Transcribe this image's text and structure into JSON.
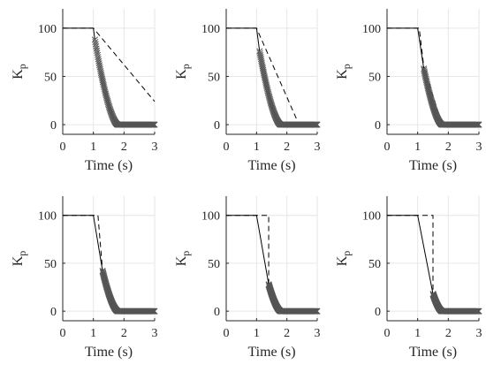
{
  "figure": {
    "background": "#ffffff",
    "grid_color": "#e6e6e6",
    "axis_color": "#262626",
    "line_color": "#000000",
    "marker_color": "#555555"
  },
  "chart_data": [
    {
      "type": "line",
      "xlabel": "Time (s)",
      "ylabel": "K",
      "ylabel_sub": "p",
      "xlim": [
        0,
        3
      ],
      "ylim": [
        -10,
        120
      ],
      "xticks": [
        0,
        1,
        2,
        3
      ],
      "yticks": [
        0,
        50,
        100
      ],
      "grid": true,
      "series": [
        {
          "style": "solid",
          "x": [
            0,
            1.0,
            1.05
          ],
          "y": [
            100,
            100,
            88
          ]
        },
        {
          "style": "dashed",
          "x": [
            0,
            1.0,
            3.0
          ],
          "y": [
            100,
            100,
            24
          ]
        },
        {
          "style": "markers",
          "x_start": 1.05,
          "y_start": 88,
          "x_zero": 1.8,
          "x_end": 3.0
        }
      ]
    },
    {
      "type": "line",
      "xlabel": "Time (s)",
      "ylabel": "K",
      "ylabel_sub": "p",
      "xlim": [
        0,
        3
      ],
      "ylim": [
        -10,
        120
      ],
      "xticks": [
        0,
        1,
        2,
        3
      ],
      "yticks": [
        0,
        50,
        100
      ],
      "grid": true,
      "series": [
        {
          "style": "solid",
          "x": [
            0,
            1.0,
            1.1
          ],
          "y": [
            100,
            100,
            76
          ]
        },
        {
          "style": "dashed",
          "x": [
            0,
            1.0,
            2.4,
            3.0
          ],
          "y": [
            100,
            100,
            0,
            0
          ]
        },
        {
          "style": "markers",
          "x_start": 1.1,
          "y_start": 76,
          "x_zero": 1.8,
          "x_end": 3.0
        }
      ]
    },
    {
      "type": "line",
      "xlabel": "Time (s)",
      "ylabel": "K",
      "ylabel_sub": "p",
      "xlim": [
        0,
        3
      ],
      "ylim": [
        -10,
        120
      ],
      "xticks": [
        0,
        1,
        2,
        3
      ],
      "yticks": [
        0,
        50,
        100
      ],
      "grid": true,
      "series": [
        {
          "style": "solid",
          "x": [
            0,
            1.0,
            1.2
          ],
          "y": [
            100,
            100,
            58
          ]
        },
        {
          "style": "dashed",
          "x": [
            0,
            1.05,
            1.2,
            1.8,
            3.0
          ],
          "y": [
            100,
            100,
            60,
            0,
            0
          ]
        },
        {
          "style": "markers",
          "x_start": 1.2,
          "y_start": 58,
          "x_zero": 1.8,
          "x_end": 3.0
        }
      ]
    },
    {
      "type": "line",
      "xlabel": "Time (s)",
      "ylabel": "K",
      "ylabel_sub": "p",
      "xlim": [
        0,
        3
      ],
      "ylim": [
        -10,
        120
      ],
      "xticks": [
        0,
        1,
        2,
        3
      ],
      "yticks": [
        0,
        50,
        100
      ],
      "grid": true,
      "series": [
        {
          "style": "solid",
          "x": [
            0,
            1.0,
            1.3
          ],
          "y": [
            100,
            100,
            42
          ]
        },
        {
          "style": "dashed",
          "x": [
            0,
            1.15,
            1.3,
            1.8,
            3.0
          ],
          "y": [
            100,
            100,
            42,
            0,
            0
          ]
        },
        {
          "style": "markers",
          "x_start": 1.3,
          "y_start": 42,
          "x_zero": 1.8,
          "x_end": 3.0
        }
      ]
    },
    {
      "type": "line",
      "xlabel": "Time (s)",
      "ylabel": "K",
      "ylabel_sub": "p",
      "xlim": [
        0,
        3
      ],
      "ylim": [
        -10,
        120
      ],
      "xticks": [
        0,
        1,
        2,
        3
      ],
      "yticks": [
        0,
        50,
        100
      ],
      "grid": true,
      "series": [
        {
          "style": "solid",
          "x": [
            0,
            1.0,
            1.4
          ],
          "y": [
            100,
            100,
            28
          ]
        },
        {
          "style": "dashed",
          "x": [
            0,
            1.4,
            1.4,
            1.8,
            3.0
          ],
          "y": [
            100,
            100,
            28,
            0,
            0
          ]
        },
        {
          "style": "markers",
          "x_start": 1.4,
          "y_start": 28,
          "x_zero": 1.8,
          "x_end": 3.0
        }
      ]
    },
    {
      "type": "line",
      "xlabel": "Time (s)",
      "ylabel": "K",
      "ylabel_sub": "p",
      "xlim": [
        0,
        3
      ],
      "ylim": [
        -10,
        120
      ],
      "xticks": [
        0,
        1,
        2,
        3
      ],
      "yticks": [
        0,
        50,
        100
      ],
      "grid": true,
      "series": [
        {
          "style": "solid",
          "x": [
            0,
            1.0,
            1.5
          ],
          "y": [
            100,
            100,
            18
          ]
        },
        {
          "style": "dashed",
          "x": [
            0,
            1.5,
            1.5,
            1.8,
            3.0
          ],
          "y": [
            100,
            100,
            18,
            0,
            0
          ]
        },
        {
          "style": "markers",
          "x_start": 1.5,
          "y_start": 18,
          "x_zero": 1.8,
          "x_end": 3.0
        }
      ]
    }
  ]
}
